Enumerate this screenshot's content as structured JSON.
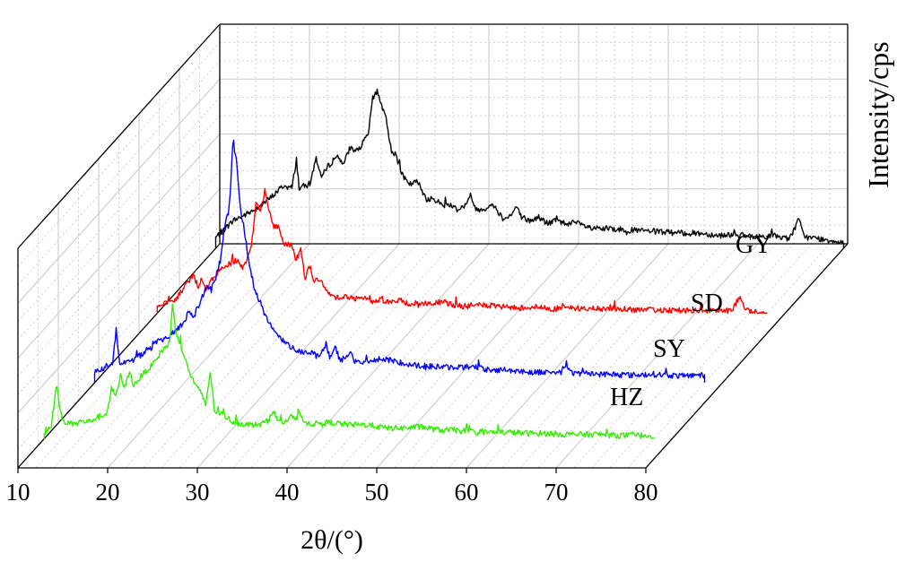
{
  "chart_data": {
    "type": "line",
    "style": "3d-waterfall",
    "title": "",
    "xlabel": "2θ/(°)",
    "ylabel": "Intensity/cps",
    "xlim": [
      10,
      80
    ],
    "x_ticks": [
      10,
      20,
      30,
      40,
      50,
      60,
      70,
      80
    ],
    "grid": true,
    "legend": "inline-labels",
    "series": [
      {
        "name": "GY",
        "color": "#000000",
        "x_start": 10,
        "x_end": 80,
        "points": [
          [
            10,
            1.0
          ],
          [
            12,
            2.6
          ],
          [
            14,
            3.4
          ],
          [
            16,
            4.6
          ],
          [
            17.5,
            5.8
          ],
          [
            18.5,
            5.6
          ],
          [
            19,
            8.3
          ],
          [
            19.3,
            5.6
          ],
          [
            20.5,
            6.0
          ],
          [
            21.2,
            8.4
          ],
          [
            21.8,
            6.6
          ],
          [
            22.5,
            7.6
          ],
          [
            23.5,
            8.6
          ],
          [
            24.3,
            7.9
          ],
          [
            25,
            9.4
          ],
          [
            25.7,
            8.9
          ],
          [
            26.5,
            9.9
          ],
          [
            27,
            10.6
          ],
          [
            27.5,
            13.9
          ],
          [
            28,
            14.7
          ],
          [
            28.5,
            13.3
          ],
          [
            29,
            11.9
          ],
          [
            29.6,
            9.1
          ],
          [
            30.2,
            8.6
          ],
          [
            30.8,
            6.8
          ],
          [
            31.5,
            5.9
          ],
          [
            32.5,
            6.2
          ],
          [
            33.5,
            4.6
          ],
          [
            34.5,
            4.5
          ],
          [
            35.3,
            4.0
          ],
          [
            36,
            4.1
          ],
          [
            37,
            3.6
          ],
          [
            38,
            4.1
          ],
          [
            38.4,
            4.9
          ],
          [
            39,
            3.6
          ],
          [
            40,
            3.7
          ],
          [
            41,
            4.0
          ],
          [
            42,
            2.8
          ],
          [
            43,
            3.1
          ],
          [
            43.5,
            3.9
          ],
          [
            44,
            3.0
          ],
          [
            45,
            2.5
          ],
          [
            46,
            2.9
          ],
          [
            47,
            2.3
          ],
          [
            48,
            2.6
          ],
          [
            49,
            2.3
          ],
          [
            50,
            2.4
          ],
          [
            52,
            1.8
          ],
          [
            54,
            1.8
          ],
          [
            56,
            1.7
          ],
          [
            58,
            1.6
          ],
          [
            60,
            1.5
          ],
          [
            62,
            1.4
          ],
          [
            64,
            1.4
          ],
          [
            66,
            1.2
          ],
          [
            68,
            1.3
          ],
          [
            70,
            1.0
          ],
          [
            72,
            1.2
          ],
          [
            74,
            0.9
          ],
          [
            75,
            2.7
          ],
          [
            75.5,
            1.3
          ],
          [
            76,
            1.0
          ],
          [
            78,
            0.8
          ],
          [
            80,
            0.6
          ]
        ]
      },
      {
        "name": "SD",
        "color": "#ff0000",
        "x_start": 10,
        "x_end": 78,
        "points": [
          [
            10,
            0.6
          ],
          [
            12,
            1.2
          ],
          [
            14,
            3.6
          ],
          [
            14.5,
            2.6
          ],
          [
            15,
            3.1
          ],
          [
            15.5,
            2.0
          ],
          [
            16,
            3.0
          ],
          [
            17,
            4.0
          ],
          [
            18,
            4.6
          ],
          [
            19,
            5.0
          ],
          [
            19.5,
            4.2
          ],
          [
            20,
            5.1
          ],
          [
            20.5,
            6.1
          ],
          [
            21,
            10.4
          ],
          [
            21.5,
            9.6
          ],
          [
            22,
            11.4
          ],
          [
            22.5,
            9.4
          ],
          [
            23,
            8.0
          ],
          [
            23.5,
            8.1
          ],
          [
            24,
            6.6
          ],
          [
            25,
            6.3
          ],
          [
            25.5,
            5.0
          ],
          [
            26,
            6.0
          ],
          [
            26.5,
            3.2
          ],
          [
            27,
            4.4
          ],
          [
            27.5,
            3.0
          ],
          [
            28,
            3.2
          ],
          [
            29,
            1.9
          ],
          [
            30,
            1.5
          ],
          [
            31,
            1.6
          ],
          [
            32,
            1.3
          ],
          [
            33,
            1.4
          ],
          [
            34,
            1.1
          ],
          [
            35,
            1.3
          ],
          [
            36,
            1.0
          ],
          [
            37,
            1.2
          ],
          [
            38,
            0.9
          ],
          [
            40,
            0.9
          ],
          [
            42,
            1.0
          ],
          [
            44,
            0.6
          ],
          [
            46,
            0.8
          ],
          [
            48,
            0.6
          ],
          [
            50,
            0.5
          ],
          [
            52,
            0.6
          ],
          [
            54,
            0.4
          ],
          [
            56,
            0.5
          ],
          [
            58,
            0.4
          ],
          [
            60,
            0.4
          ],
          [
            62,
            0.4
          ],
          [
            64,
            0.3
          ],
          [
            66,
            0.3
          ],
          [
            68,
            0.3
          ],
          [
            70,
            0.2
          ],
          [
            72,
            0.2
          ],
          [
            74,
            0.2
          ],
          [
            75,
            1.6
          ],
          [
            75.4,
            0.5
          ],
          [
            76,
            0.2
          ],
          [
            77,
            0.1
          ],
          [
            78,
            0.1
          ]
        ]
      },
      {
        "name": "SY",
        "color": "#0000ff",
        "x_start": 10,
        "x_end": 78,
        "points": [
          [
            10,
            1.0
          ],
          [
            12,
            1.8
          ],
          [
            12.4,
            5.0
          ],
          [
            12.8,
            1.8
          ],
          [
            14,
            2.0
          ],
          [
            16,
            3.0
          ],
          [
            17,
            3.8
          ],
          [
            18,
            4.2
          ],
          [
            19,
            4.8
          ],
          [
            20,
            5.6
          ],
          [
            20.5,
            6.8
          ],
          [
            21,
            6.0
          ],
          [
            22,
            8.0
          ],
          [
            22.5,
            9.0
          ],
          [
            23,
            8.6
          ],
          [
            24,
            11.0
          ],
          [
            24.5,
            14.6
          ],
          [
            25,
            16.0
          ],
          [
            25.4,
            22.0
          ],
          [
            25.8,
            21.0
          ],
          [
            26.2,
            16.6
          ],
          [
            26.7,
            14.0
          ],
          [
            27,
            12.4
          ],
          [
            27.5,
            10.0
          ],
          [
            28,
            8.2
          ],
          [
            28.5,
            7.4
          ],
          [
            29,
            6.3
          ],
          [
            30,
            4.9
          ],
          [
            31,
            3.9
          ],
          [
            32,
            3.3
          ],
          [
            33,
            2.9
          ],
          [
            34,
            2.8
          ],
          [
            35,
            2.4
          ],
          [
            35.8,
            3.6
          ],
          [
            36.2,
            2.4
          ],
          [
            36.8,
            3.3
          ],
          [
            37.3,
            2.2
          ],
          [
            38,
            2.2
          ],
          [
            38.5,
            3.1
          ],
          [
            39,
            1.9
          ],
          [
            40,
            2.0
          ],
          [
            42,
            2.2
          ],
          [
            44,
            1.9
          ],
          [
            46,
            1.6
          ],
          [
            48,
            1.5
          ],
          [
            50,
            1.4
          ],
          [
            52,
            1.5
          ],
          [
            54,
            1.2
          ],
          [
            56,
            1.2
          ],
          [
            58,
            1.0
          ],
          [
            60,
            1.0
          ],
          [
            62,
            1.0
          ],
          [
            62.5,
            1.7
          ],
          [
            63,
            0.9
          ],
          [
            64,
            0.9
          ],
          [
            66,
            0.8
          ],
          [
            68,
            0.8
          ],
          [
            70,
            0.7
          ],
          [
            72,
            0.8
          ],
          [
            74,
            0.7
          ],
          [
            76,
            0.6
          ],
          [
            77,
            0.8
          ],
          [
            78,
            0.6
          ]
        ]
      },
      {
        "name": "HZ",
        "color": "#33ee00",
        "x_start": 10,
        "x_end": 78,
        "points": [
          [
            10,
            0.5
          ],
          [
            10.8,
            1.2
          ],
          [
            11.4,
            5.1
          ],
          [
            12,
            1.6
          ],
          [
            13,
            1.4
          ],
          [
            14,
            1.6
          ],
          [
            15,
            1.6
          ],
          [
            16,
            2.0
          ],
          [
            17,
            2.4
          ],
          [
            17.5,
            4.6
          ],
          [
            18,
            4.0
          ],
          [
            18.5,
            5.8
          ],
          [
            19,
            4.8
          ],
          [
            19.5,
            6.2
          ],
          [
            20,
            5.0
          ],
          [
            21,
            6.0
          ],
          [
            22,
            6.8
          ],
          [
            23,
            8.0
          ],
          [
            24,
            9.0
          ],
          [
            24.3,
            12.4
          ],
          [
            24.7,
            10.0
          ],
          [
            25,
            9.2
          ],
          [
            25.5,
            8.0
          ],
          [
            26,
            6.6
          ],
          [
            26.5,
            5.6
          ],
          [
            27,
            4.8
          ],
          [
            27.5,
            4.2
          ],
          [
            28,
            3.2
          ],
          [
            28.5,
            6.2
          ],
          [
            29,
            2.6
          ],
          [
            30,
            2.2
          ],
          [
            31,
            1.6
          ],
          [
            32,
            1.4
          ],
          [
            33,
            1.3
          ],
          [
            34,
            1.3
          ],
          [
            35,
            1.7
          ],
          [
            35.5,
            2.7
          ],
          [
            36,
            1.7
          ],
          [
            37,
            1.5
          ],
          [
            37.5,
            2.3
          ],
          [
            38,
            1.6
          ],
          [
            38.5,
            2.5
          ],
          [
            39,
            1.5
          ],
          [
            40,
            1.4
          ],
          [
            42,
            1.5
          ],
          [
            44,
            1.3
          ],
          [
            46,
            1.3
          ],
          [
            48,
            1.0
          ],
          [
            50,
            1.0
          ],
          [
            52,
            1.1
          ],
          [
            54,
            0.8
          ],
          [
            56,
            0.8
          ],
          [
            58,
            0.6
          ],
          [
            60,
            0.6
          ],
          [
            62,
            0.6
          ],
          [
            64,
            0.5
          ],
          [
            66,
            0.5
          ],
          [
            68,
            0.4
          ],
          [
            70,
            0.4
          ],
          [
            72,
            0.4
          ],
          [
            74,
            0.3
          ],
          [
            76,
            0.3
          ],
          [
            78,
            0.3
          ]
        ]
      }
    ]
  }
}
